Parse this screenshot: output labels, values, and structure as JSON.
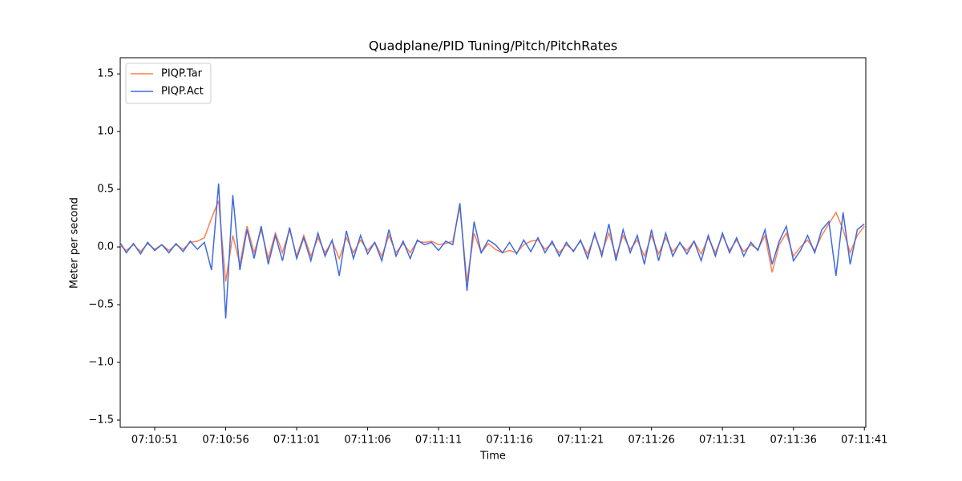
{
  "chart_data": {
    "type": "line",
    "title": "Quadplane/PID Tuning/Pitch/PitchRates",
    "x_label": "Time",
    "y_label": "Meter per second",
    "x": [
      "07:10:48.5",
      "07:10:49",
      "07:10:49.5",
      "07:10:50",
      "07:10:50.5",
      "07:10:51",
      "07:10:51.5",
      "07:10:52",
      "07:10:52.5",
      "07:10:53",
      "07:10:53.5",
      "07:10:54",
      "07:10:54.5",
      "07:10:55",
      "07:10:55.5",
      "07:10:56",
      "07:10:56.5",
      "07:10:57",
      "07:10:57.5",
      "07:10:58",
      "07:10:58.5",
      "07:10:59",
      "07:10:59.5",
      "07:11:00",
      "07:11:00.5",
      "07:11:01",
      "07:11:01.5",
      "07:11:02",
      "07:11:02.5",
      "07:11:03",
      "07:11:03.5",
      "07:11:04",
      "07:11:04.5",
      "07:11:05",
      "07:11:05.5",
      "07:11:06",
      "07:11:06.5",
      "07:11:07",
      "07:11:07.5",
      "07:11:08",
      "07:11:08.5",
      "07:11:09",
      "07:11:09.5",
      "07:11:10",
      "07:11:10.5",
      "07:11:11",
      "07:11:11.5",
      "07:11:12",
      "07:11:12.5",
      "07:11:13",
      "07:11:13.5",
      "07:11:14",
      "07:11:14.5",
      "07:11:15",
      "07:11:15.5",
      "07:11:16",
      "07:11:16.5",
      "07:11:17",
      "07:11:17.5",
      "07:11:18",
      "07:11:18.5",
      "07:11:19",
      "07:11:19.5",
      "07:11:20",
      "07:11:20.5",
      "07:11:21",
      "07:11:21.5",
      "07:11:22",
      "07:11:22.5",
      "07:11:23",
      "07:11:23.5",
      "07:11:24",
      "07:11:24.5",
      "07:11:25",
      "07:11:25.5",
      "07:11:26",
      "07:11:26.5",
      "07:11:27",
      "07:11:27.5",
      "07:11:28",
      "07:11:28.5",
      "07:11:29",
      "07:11:29.5",
      "07:11:30",
      "07:11:30.5",
      "07:11:31",
      "07:11:31.5",
      "07:11:32",
      "07:11:32.5",
      "07:11:33",
      "07:11:33.5",
      "07:11:34",
      "07:11:34.5",
      "07:11:35",
      "07:11:35.5",
      "07:11:36",
      "07:11:36.5",
      "07:11:37",
      "07:11:37.5",
      "07:11:38",
      "07:11:38.5",
      "07:11:39",
      "07:11:39.5",
      "07:11:40",
      "07:11:40.5",
      "07:11:41"
    ],
    "series": [
      {
        "name": "PIQP.Tar",
        "color": "#ff7f50",
        "values": [
          0.02,
          -0.03,
          0.02,
          -0.04,
          0.03,
          -0.02,
          0.02,
          -0.03,
          0.02,
          -0.02,
          0.04,
          0.05,
          0.08,
          0.25,
          0.4,
          -0.3,
          0.1,
          -0.15,
          0.18,
          -0.05,
          0.15,
          -0.1,
          0.12,
          -0.05,
          0.15,
          -0.08,
          0.1,
          -0.08,
          0.08,
          -0.05,
          0.05,
          -0.1,
          0.08,
          -0.05,
          0.06,
          -0.03,
          0.04,
          -0.08,
          0.1,
          -0.05,
          0.03,
          -0.05,
          0.05,
          0.04,
          0.05,
          0.02,
          0.03,
          0.05,
          0.35,
          -0.3,
          0.12,
          -0.05,
          0.03,
          -0.02,
          -0.05,
          -0.03,
          -0.05,
          0.02,
          0.05,
          0.06,
          -0.02,
          0.03,
          -0.05,
          0.02,
          -0.03,
          0.05,
          -0.06,
          0.1,
          -0.05,
          0.12,
          -0.08,
          0.1,
          -0.02,
          0.06,
          -0.08,
          0.1,
          -0.06,
          0.08,
          -0.04,
          0.03,
          -0.03,
          0.05,
          -0.06,
          0.08,
          -0.05,
          0.1,
          -0.03,
          0.06,
          -0.04,
          0.02,
          -0.02,
          0.1,
          -0.22,
          0.02,
          0.12,
          -0.08,
          0.0,
          0.06,
          -0.03,
          0.1,
          0.2,
          0.3,
          0.15,
          -0.05,
          0.1,
          0.18
        ]
      },
      {
        "name": "PIQP.Act",
        "color": "#4169e1",
        "values": [
          0.05,
          -0.05,
          0.03,
          -0.06,
          0.04,
          -0.03,
          0.02,
          -0.05,
          0.03,
          -0.04,
          0.05,
          -0.02,
          0.04,
          -0.2,
          0.55,
          -0.62,
          0.45,
          -0.2,
          0.15,
          -0.1,
          0.18,
          -0.15,
          0.1,
          -0.12,
          0.17,
          -0.1,
          0.08,
          -0.12,
          0.12,
          -0.08,
          0.06,
          -0.25,
          0.14,
          -0.1,
          0.1,
          -0.06,
          0.04,
          -0.12,
          0.15,
          -0.08,
          0.05,
          -0.1,
          0.06,
          0.02,
          0.04,
          -0.03,
          0.05,
          0.02,
          0.38,
          -0.38,
          0.22,
          -0.05,
          0.06,
          0.02,
          -0.05,
          0.04,
          -0.06,
          0.06,
          -0.04,
          0.08,
          -0.05,
          0.05,
          -0.08,
          0.04,
          -0.04,
          0.06,
          -0.1,
          0.12,
          -0.08,
          0.2,
          -0.12,
          0.15,
          -0.05,
          0.1,
          -0.15,
          0.15,
          -0.12,
          0.12,
          -0.08,
          0.04,
          -0.06,
          0.05,
          -0.12,
          0.1,
          -0.08,
          0.12,
          -0.05,
          0.08,
          -0.08,
          0.04,
          -0.03,
          0.15,
          -0.15,
          0.05,
          0.18,
          -0.12,
          -0.03,
          0.1,
          -0.05,
          0.15,
          0.22,
          -0.25,
          0.3,
          -0.15,
          0.15,
          0.2
        ]
      }
    ],
    "xlim": [
      "07:10:48.57",
      "07:11:41.1"
    ],
    "xticks": [
      "07:10:51",
      "07:10:56",
      "07:11:01",
      "07:11:06",
      "07:11:11",
      "07:11:16",
      "07:11:21",
      "07:11:26",
      "07:11:31",
      "07:11:36",
      "07:11:41"
    ],
    "ylim": [
      -1.5625,
      1.64
    ],
    "yticks": [
      {
        "value": -1.5,
        "label": "−1.5"
      },
      {
        "value": -1.0,
        "label": "−1.0"
      },
      {
        "value": -0.5,
        "label": "−0.5"
      },
      {
        "value": 0,
        "label": "0.0"
      },
      0.5,
      {
        "value": 1.0,
        "label": "1.0"
      },
      1.5
    ],
    "legend": "upper left"
  }
}
